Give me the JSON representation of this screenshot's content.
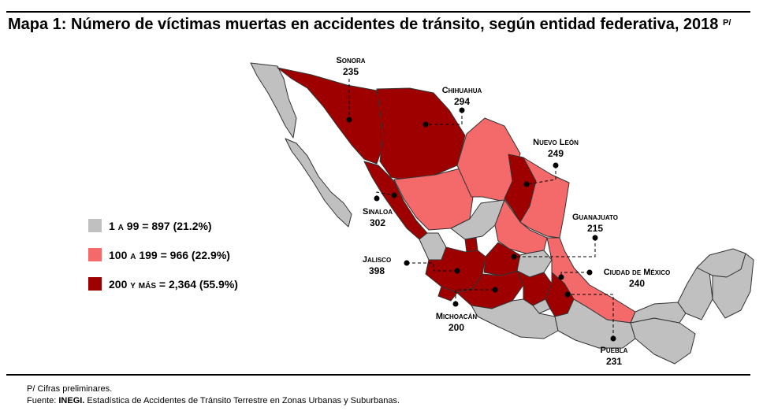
{
  "title": {
    "text": "Mapa 1: Número de víctimas muertas en accidentes de tránsito, según entidad federativa, 2018",
    "note_mark": "P/"
  },
  "legend": [
    {
      "range": "1 a 99",
      "total": "= 897 (21.2%)",
      "color": "#c0c0c0"
    },
    {
      "range": "100 a 199",
      "total": "= 966 (22.9%)",
      "color": "#f46a6a"
    },
    {
      "range": "200 y más",
      "total": "= 2,364 (55.9%)",
      "color": "#9e0000"
    }
  ],
  "callouts": {
    "sonora": {
      "name": "Sonora",
      "value": "235"
    },
    "chihuahua": {
      "name": "Chihuahua",
      "value": "294"
    },
    "nuevo_leon": {
      "name": "Nuevo León",
      "value": "249"
    },
    "sinaloa": {
      "name": "Sinaloa",
      "value": "302"
    },
    "guanajuato": {
      "name": "Guanajuato",
      "value": "215"
    },
    "jalisco": {
      "name": "Jalisco",
      "value": "398"
    },
    "cdmx": {
      "name": "Ciudad de México",
      "value": "240"
    },
    "michoacan": {
      "name": "Michoacán",
      "value": "200"
    },
    "puebla": {
      "name": "Puebla",
      "value": "231"
    }
  },
  "footer": {
    "note": "P/ Cifras preliminares.",
    "source_prefix": "Fuente: ",
    "source_org": "INEGI.",
    "source_text": " Estadística de Accidentes de Tránsito Terrestre en Zonas Urbanas y Suburbanas."
  }
}
